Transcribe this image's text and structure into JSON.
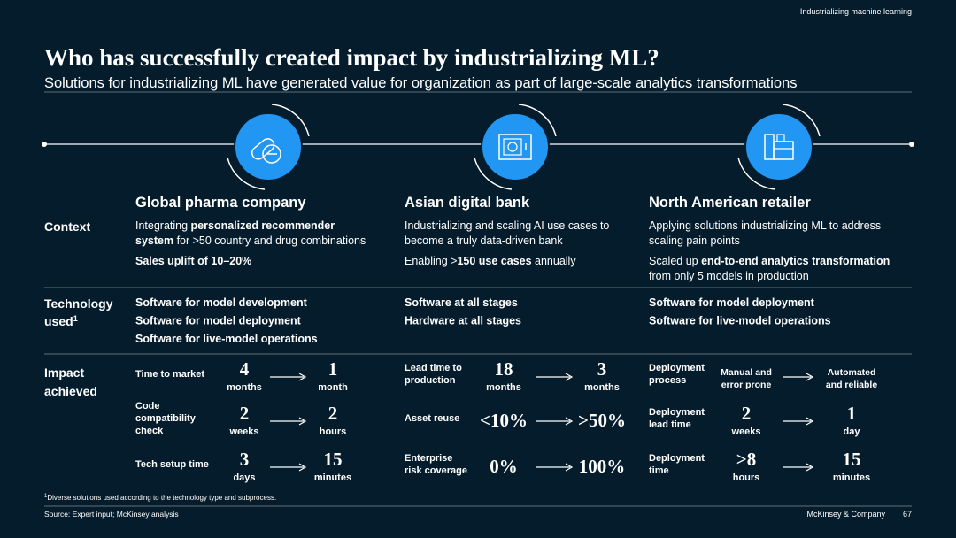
{
  "header": {
    "label": "Industrializing machine learning",
    "title": "Who has successfully created impact by industrializing ML?",
    "subtitle": "Solutions for industrializing ML have generated value for organization as part of large-scale analytics transformations"
  },
  "row_labels": {
    "context": [
      "Context"
    ],
    "technology": [
      "Technology",
      "used"
    ],
    "technology_marker": "1",
    "impact": [
      "Impact",
      "achieved"
    ]
  },
  "columns": [
    {
      "name": "Global pharma company",
      "context": [
        [
          [
            {
              "text": "Integrating ",
              "bold": false
            },
            {
              "text": "personalized recommender",
              "bold": true
            }
          ],
          [
            {
              "text": "system",
              "bold": true
            },
            {
              "text": " for >50 country and drug combinations",
              "bold": false
            }
          ]
        ],
        [
          [
            {
              "text": "Sales uplift of 10–20%",
              "bold": true
            }
          ]
        ]
      ],
      "technology": [
        "Software for model development",
        "Software for model deployment",
        "Software for live-model operations"
      ],
      "impact": [
        {
          "label": [
            "Time to market"
          ],
          "from": {
            "value": "4",
            "unit": "months"
          },
          "to": {
            "value": "1",
            "unit": "month"
          }
        },
        {
          "label": [
            "Code",
            "compatibility",
            "check"
          ],
          "from": {
            "value": "2",
            "unit": "weeks"
          },
          "to": {
            "value": "2",
            "unit": "hours"
          }
        },
        {
          "label": [
            "Tech setup time"
          ],
          "from": {
            "value": "3",
            "unit": "days"
          },
          "to": {
            "value": "15",
            "unit": "minutes"
          }
        }
      ]
    },
    {
      "name": "Asian digital bank",
      "context": [
        [
          [
            {
              "text": "Industrializing and scaling AI use cases to",
              "bold": false
            }
          ],
          [
            {
              "text": "become a truly data-driven bank",
              "bold": false
            }
          ]
        ],
        [
          [
            {
              "text": "Enabling >",
              "bold": false
            },
            {
              "text": "150 use cases",
              "bold": true
            },
            {
              "text": " annually",
              "bold": false
            }
          ]
        ]
      ],
      "technology": [
        "Software at all stages",
        "Hardware at all stages"
      ],
      "impact": [
        {
          "label": [
            "Lead time to",
            "production"
          ],
          "from": {
            "value": "18",
            "unit": "months"
          },
          "to": {
            "value": "3",
            "unit": "months"
          }
        },
        {
          "label": [
            "Asset reuse"
          ],
          "from": {
            "value": "<10%"
          },
          "to": {
            "value": ">50%"
          }
        },
        {
          "label": [
            "Enterprise",
            "risk coverage"
          ],
          "from": {
            "value": "0%"
          },
          "to": {
            "value": "100%"
          }
        }
      ]
    },
    {
      "name": "North American retailer",
      "context": [
        [
          [
            {
              "text": "Applying solutions industrializing ML to address",
              "bold": false
            }
          ],
          [
            {
              "text": "scaling pain points",
              "bold": false
            }
          ]
        ],
        [
          [
            {
              "text": "Scaled up ",
              "bold": false
            },
            {
              "text": "end-to-end analytics transformation",
              "bold": true
            }
          ],
          [
            {
              "text": "from only 5 models in production",
              "bold": false
            }
          ]
        ]
      ],
      "technology": [
        "Software for model deployment",
        "Software for live-model operations"
      ],
      "impact": [
        {
          "label": [
            "Deployment",
            "process"
          ],
          "from": {
            "lines": [
              "Manual and",
              "error prone"
            ]
          },
          "to": {
            "lines": [
              "Automated",
              "and reliable"
            ]
          }
        },
        {
          "label": [
            "Deployment",
            "lead time"
          ],
          "from": {
            "value": "2",
            "unit": "weeks"
          },
          "to": {
            "value": "1",
            "unit": "day"
          }
        },
        {
          "label": [
            "Deployment",
            "time"
          ],
          "from": {
            "value": ">8",
            "unit": "hours"
          },
          "to": {
            "value": "15",
            "unit": "minutes"
          }
        }
      ]
    }
  ],
  "footer": {
    "footnote_marker": "1",
    "footnote": "Diverse solutions used according to the technology type and subprocess.",
    "source": "Source: Expert input; McKinsey analysis",
    "company": "McKinsey & Company",
    "page": "67"
  }
}
